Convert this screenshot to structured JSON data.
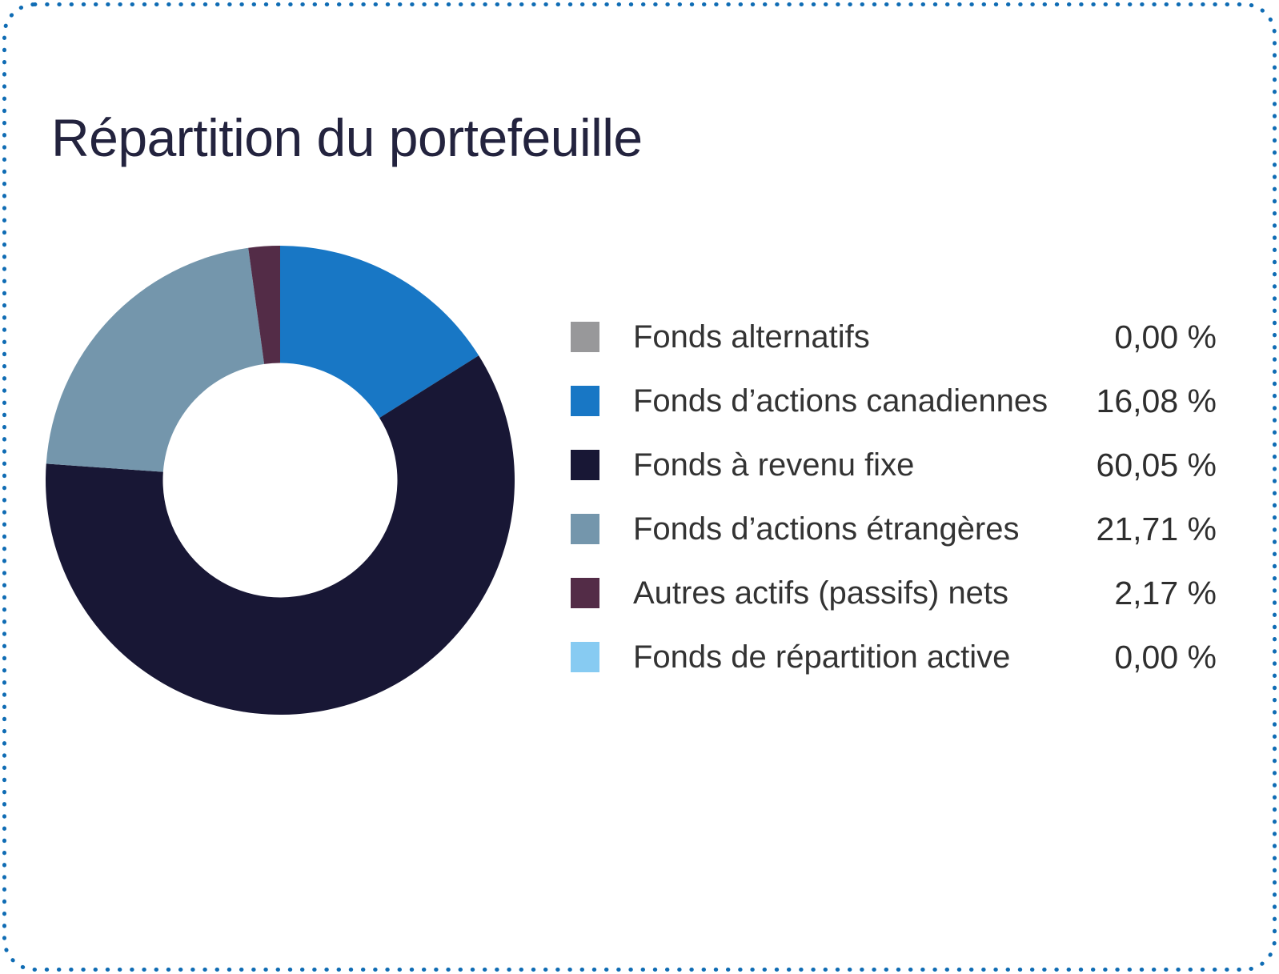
{
  "page": {
    "title": "Répartition du portefeuille"
  },
  "colors": {
    "border_dots": "#0F6CB4",
    "title_text": "#23233E",
    "legend_label_text": "#333333",
    "legend_value_text": "#2E2E2E",
    "background": "#FFFFFF"
  },
  "chart_data": {
    "type": "pie",
    "subtype": "donut",
    "title": "Répartition du portefeuille",
    "direction": "clockwise",
    "start_angle_deg": 0,
    "inner_radius_ratio": 0.5,
    "legend_position": "right",
    "segments": [
      {
        "label": "Fonds alternatifs",
        "value": 0.0,
        "display": "0,00 %",
        "color": "#98989A"
      },
      {
        "label": "Fonds d’actions canadiennes",
        "value": 16.08,
        "display": "16,08 %",
        "color": "#1877C5"
      },
      {
        "label": "Fonds à revenu fixe",
        "value": 60.05,
        "display": "60,05 %",
        "color": "#181735"
      },
      {
        "label": "Fonds d’actions étrangères",
        "value": 21.71,
        "display": "21,71 %",
        "color": "#7496AC"
      },
      {
        "label": "Autres actifs (passifs) nets",
        "value": 2.17,
        "display": "2,17 %",
        "color": "#532C47"
      },
      {
        "label": "Fonds de répartition active",
        "value": 0.0,
        "display": "0,00 %",
        "color": "#87CBF2"
      }
    ]
  }
}
